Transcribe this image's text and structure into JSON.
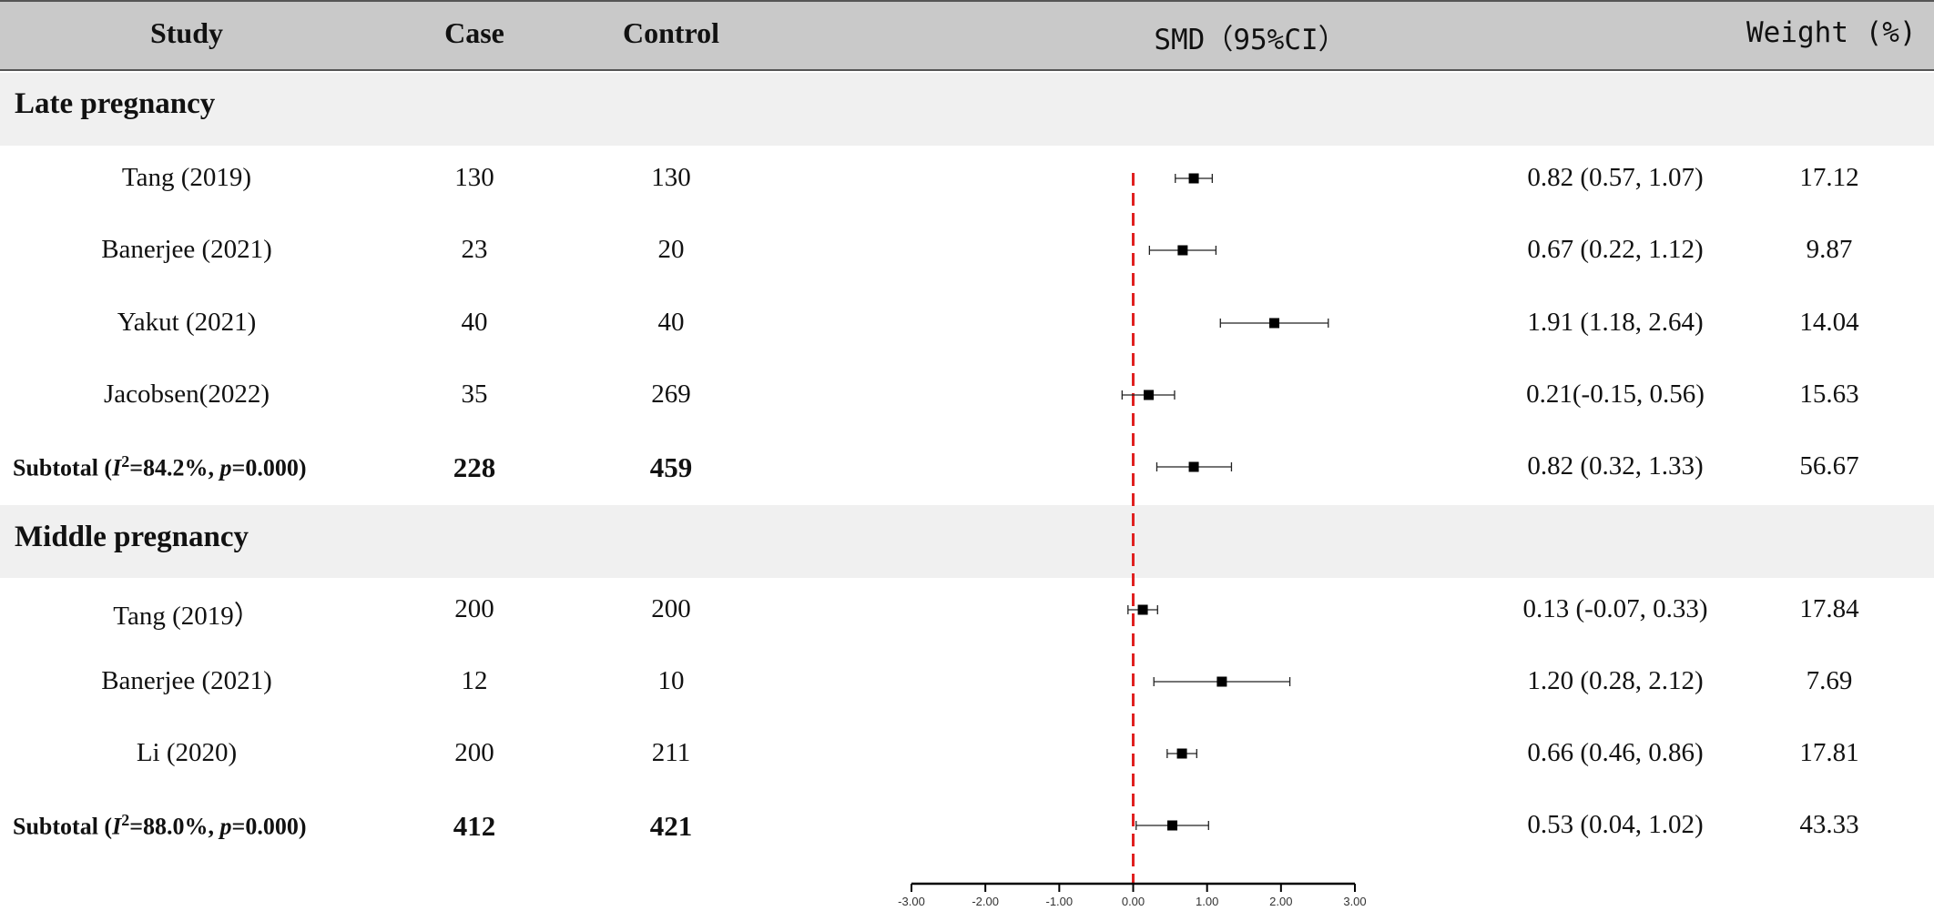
{
  "header": {
    "study": "Study",
    "case": "Case",
    "control": "Control",
    "smd": "SMD（95%CI）",
    "weight": "Weight (%)"
  },
  "groups": [
    {
      "label": "Late pregnancy"
    },
    {
      "label": "Middle pregnancy"
    }
  ],
  "rows": [
    {
      "study": "Tang (2019)",
      "case": "130",
      "control": "130",
      "ci_text": "0.82 (0.57, 1.07)",
      "weight": "17.12"
    },
    {
      "study": "Banerjee (2021)",
      "case": "23",
      "control": "20",
      "ci_text": "0.67 (0.22, 1.12)",
      "weight": "9.87"
    },
    {
      "study": "Yakut (2021)",
      "case": "40",
      "control": "40",
      "ci_text": "1.91 (1.18, 2.64)",
      "weight": "14.04"
    },
    {
      "study": "Jacobsen(2022)",
      "case": "35",
      "control": "269",
      "ci_text": "0.21(-0.15, 0.56)",
      "weight": "15.63"
    },
    {
      "subtotal": true,
      "label_prefix": "Subtotal (",
      "i2_sym": "I",
      "i2_sup": "2",
      "i2_rest": "=84.2%, ",
      "p_sym": "p",
      "p_rest": "=0.000)",
      "case": "228",
      "control": "459",
      "ci_text": "0.82 (0.32, 1.33)",
      "weight": "56.67"
    },
    {
      "study": "Tang (2019）",
      "case": "200",
      "control": "200",
      "ci_text": "0.13 (-0.07, 0.33)",
      "weight": "17.84"
    },
    {
      "study": "Banerjee (2021)",
      "case": "12",
      "control": "10",
      "ci_text": "1.20 (0.28, 2.12)",
      "weight": "7.69"
    },
    {
      "study": "Li (2020)",
      "case": "200",
      "control": "211",
      "ci_text": "0.66 (0.46, 0.86)",
      "weight": "17.81"
    },
    {
      "subtotal": true,
      "label_prefix": "Subtotal (",
      "i2_sym": "I",
      "i2_sup": "2",
      "i2_rest": "=88.0%, ",
      "p_sym": "p",
      "p_rest": "=0.000)",
      "case": "412",
      "control": "421",
      "ci_text": "0.53 (0.04, 1.02)",
      "weight": "43.33"
    }
  ],
  "chart_data": {
    "type": "forest",
    "x_ticks": [
      "-3.00",
      "-2.00",
      "-1.00",
      "0.00",
      "1.00",
      "2.00",
      "3.00"
    ],
    "xlim": [
      -3,
      3
    ],
    "reference_line": 0,
    "reference_color": "#e02020",
    "points": [
      {
        "est": 0.82,
        "lo": 0.57,
        "hi": 1.07
      },
      {
        "est": 0.67,
        "lo": 0.22,
        "hi": 1.12
      },
      {
        "est": 1.91,
        "lo": 1.18,
        "hi": 2.64
      },
      {
        "est": 0.21,
        "lo": -0.15,
        "hi": 0.56
      },
      {
        "est": 0.82,
        "lo": 0.32,
        "hi": 1.33
      },
      {
        "est": 0.13,
        "lo": -0.07,
        "hi": 0.33
      },
      {
        "est": 1.2,
        "lo": 0.28,
        "hi": 2.12
      },
      {
        "est": 0.66,
        "lo": 0.46,
        "hi": 0.86
      },
      {
        "est": 0.53,
        "lo": 0.04,
        "hi": 1.02
      }
    ]
  }
}
